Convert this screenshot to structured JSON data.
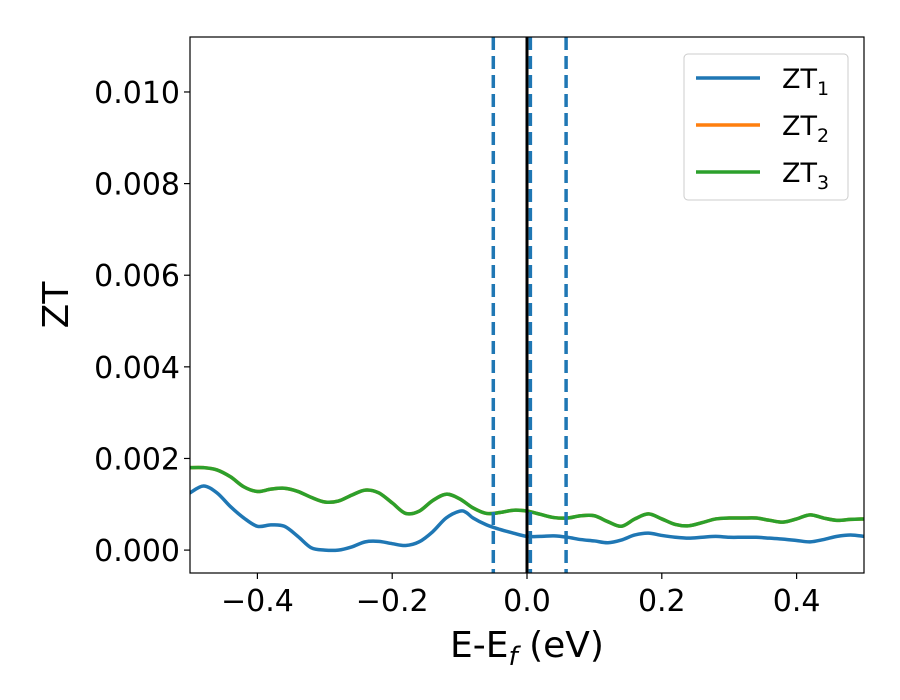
{
  "chart_data": {
    "type": "line",
    "title": "",
    "xlabel": {
      "main": "E-E",
      "sub": "f",
      "unit": " (eV)"
    },
    "ylabel": "ZT",
    "xlim": [
      -0.5,
      0.5
    ],
    "ylim": [
      -0.0005,
      0.0112
    ],
    "xticks": [
      -0.4,
      -0.2,
      0.0,
      0.2,
      0.4
    ],
    "xtick_labels": [
      "−0.4",
      "−0.2",
      "0.0",
      "0.2",
      "0.4"
    ],
    "yticks": [
      0.0,
      0.002,
      0.004,
      0.006,
      0.008,
      0.01
    ],
    "ytick_labels": [
      "0.000",
      "0.002",
      "0.004",
      "0.006",
      "0.008",
      "0.010"
    ],
    "grid": false,
    "legend_position": "top-right",
    "vertical_lines": [
      {
        "x": -0.05,
        "style": "dashed",
        "color": "#1f77b4"
      },
      {
        "x": 0.005,
        "style": "dashed",
        "color": "#1f77b4"
      },
      {
        "x": 0.058,
        "style": "dashed",
        "color": "#1f77b4"
      },
      {
        "x": 0.0,
        "style": "solid",
        "color": "#000000"
      }
    ],
    "series": [
      {
        "name": "ZT",
        "sub": "1",
        "color": "#1f77b4",
        "x": [
          -0.5,
          -0.48,
          -0.46,
          -0.44,
          -0.42,
          -0.4,
          -0.38,
          -0.36,
          -0.34,
          -0.32,
          -0.3,
          -0.28,
          -0.26,
          -0.24,
          -0.22,
          -0.2,
          -0.18,
          -0.16,
          -0.14,
          -0.12,
          -0.1,
          -0.09,
          -0.08,
          -0.06,
          -0.04,
          -0.02,
          0.0,
          0.02,
          0.04,
          0.06,
          0.08,
          0.1,
          0.12,
          0.14,
          0.16,
          0.18,
          0.2,
          0.22,
          0.24,
          0.26,
          0.28,
          0.3,
          0.32,
          0.34,
          0.36,
          0.38,
          0.4,
          0.42,
          0.44,
          0.46,
          0.48,
          0.5
        ],
        "y": [
          0.00125,
          0.0014,
          0.00125,
          0.00095,
          0.0007,
          0.00052,
          0.00055,
          0.00052,
          0.0003,
          5e-05,
          0.0,
          0.0,
          7e-05,
          0.00018,
          0.00019,
          0.00014,
          0.0001,
          0.00018,
          0.0004,
          0.0007,
          0.00085,
          0.00082,
          0.0007,
          0.00055,
          0.00045,
          0.00037,
          0.0003,
          0.0003,
          0.00031,
          0.00028,
          0.00023,
          0.0002,
          0.00016,
          0.00022,
          0.00033,
          0.00037,
          0.00032,
          0.00028,
          0.00026,
          0.00028,
          0.0003,
          0.00028,
          0.00028,
          0.00028,
          0.00026,
          0.00024,
          0.00021,
          0.00018,
          0.00023,
          0.0003,
          0.00033,
          0.0003
        ]
      },
      {
        "name": "ZT",
        "sub": "2",
        "color": "#ff7f0e",
        "x": [
          -0.5,
          -0.48,
          -0.46,
          -0.44,
          -0.42,
          -0.4,
          -0.38,
          -0.36,
          -0.34,
          -0.32,
          -0.3,
          -0.28,
          -0.26,
          -0.24,
          -0.22,
          -0.2,
          -0.18,
          -0.16,
          -0.14,
          -0.12,
          -0.1,
          -0.08,
          -0.06,
          -0.04,
          -0.02,
          0.0,
          0.02,
          0.04,
          0.06,
          0.08,
          0.1,
          0.12,
          0.14,
          0.16,
          0.18,
          0.2,
          0.22,
          0.24,
          0.26,
          0.28,
          0.3,
          0.32,
          0.34,
          0.36,
          0.38,
          0.4,
          0.42,
          0.44,
          0.46,
          0.48,
          0.5
        ],
        "y": [
          0.0018,
          0.0018,
          0.00175,
          0.0016,
          0.00138,
          0.00128,
          0.00133,
          0.00135,
          0.00128,
          0.00115,
          0.00105,
          0.00107,
          0.0012,
          0.00131,
          0.00125,
          0.00103,
          0.0008,
          0.00085,
          0.00108,
          0.00122,
          0.00112,
          0.00092,
          0.0008,
          0.00082,
          0.00087,
          0.00085,
          0.00078,
          0.00071,
          0.0007,
          0.00075,
          0.00075,
          0.00062,
          0.00052,
          0.00068,
          0.00079,
          0.00068,
          0.00056,
          0.00053,
          0.0006,
          0.00068,
          0.0007,
          0.0007,
          0.0007,
          0.00065,
          0.00061,
          0.00068,
          0.00077,
          0.0007,
          0.00065,
          0.00067,
          0.00068
        ]
      },
      {
        "name": "ZT",
        "sub": "3",
        "color": "#2ca02c",
        "x": [
          -0.5,
          -0.48,
          -0.46,
          -0.44,
          -0.42,
          -0.4,
          -0.38,
          -0.36,
          -0.34,
          -0.32,
          -0.3,
          -0.28,
          -0.26,
          -0.24,
          -0.22,
          -0.2,
          -0.18,
          -0.16,
          -0.14,
          -0.12,
          -0.1,
          -0.08,
          -0.06,
          -0.04,
          -0.02,
          0.0,
          0.02,
          0.04,
          0.06,
          0.08,
          0.1,
          0.12,
          0.14,
          0.16,
          0.18,
          0.2,
          0.22,
          0.24,
          0.26,
          0.28,
          0.3,
          0.32,
          0.34,
          0.36,
          0.38,
          0.4,
          0.42,
          0.44,
          0.46,
          0.48,
          0.5
        ],
        "y": [
          0.0018,
          0.0018,
          0.00175,
          0.0016,
          0.00138,
          0.00128,
          0.00133,
          0.00135,
          0.00128,
          0.00115,
          0.00105,
          0.00107,
          0.0012,
          0.00131,
          0.00125,
          0.00103,
          0.0008,
          0.00085,
          0.00108,
          0.00122,
          0.00112,
          0.00092,
          0.0008,
          0.00082,
          0.00087,
          0.00085,
          0.00078,
          0.00071,
          0.0007,
          0.00075,
          0.00075,
          0.00062,
          0.00052,
          0.00068,
          0.00079,
          0.00068,
          0.00056,
          0.00053,
          0.0006,
          0.00068,
          0.0007,
          0.0007,
          0.0007,
          0.00065,
          0.00061,
          0.00068,
          0.00077,
          0.0007,
          0.00065,
          0.00067,
          0.00068
        ]
      }
    ]
  }
}
